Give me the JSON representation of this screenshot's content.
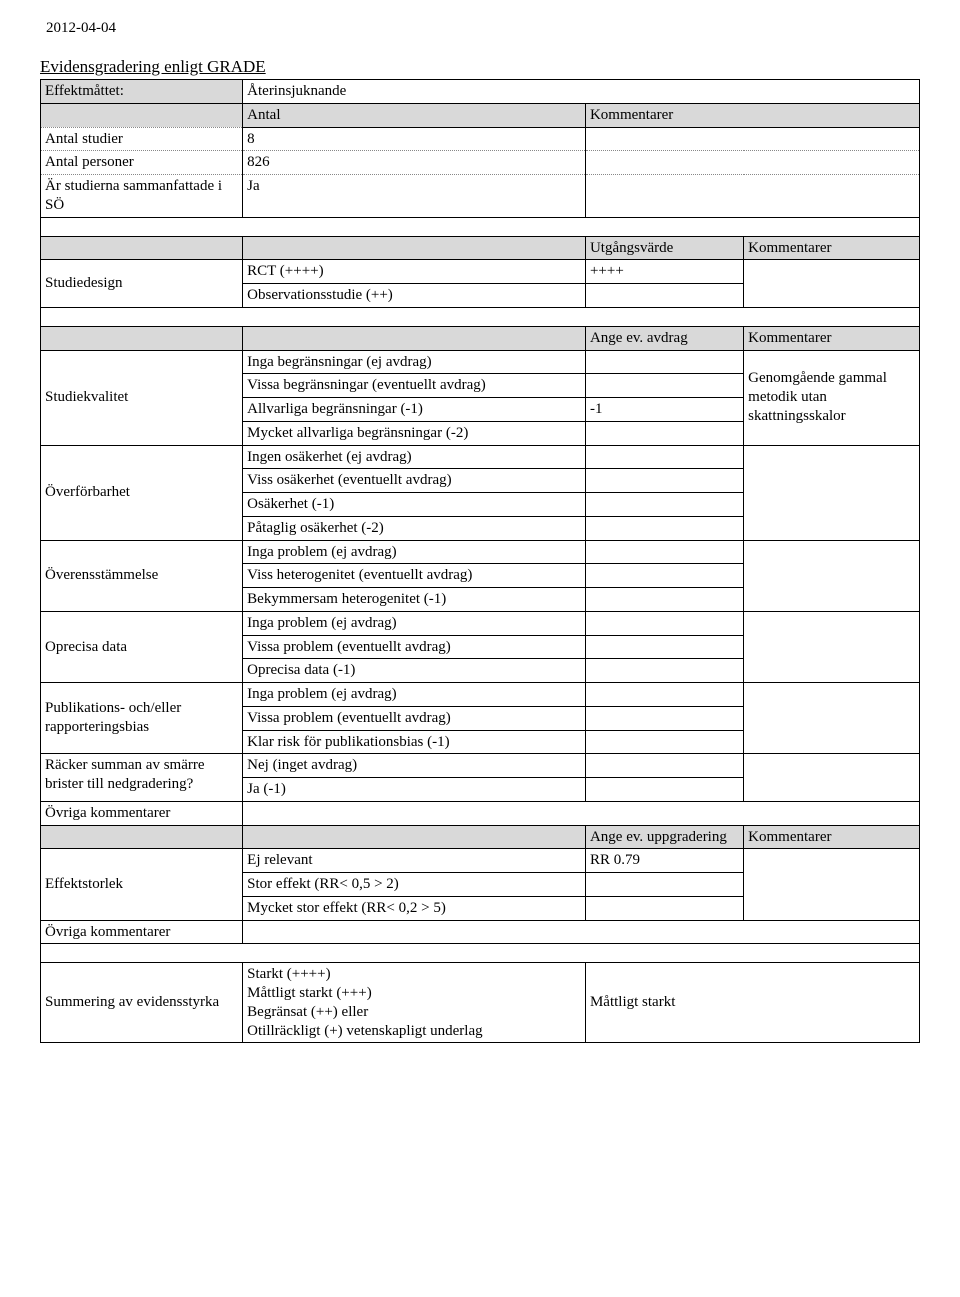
{
  "date": "2012-04-04",
  "title": "Evidensgradering enligt GRADE",
  "header_block": {
    "effektmattet_label": "Effektmåttet:",
    "effektmattet_value": "Återinsjuknande",
    "antal_header": "Antal",
    "kommentarer_header": "Kommentarer",
    "rows": [
      {
        "label": "Antal studier",
        "value": "8"
      },
      {
        "label": "Antal personer",
        "value": "826"
      },
      {
        "label": "Är studierna sammanfattade i SÖ",
        "value": "Ja"
      }
    ]
  },
  "studiedesign": {
    "label": "Studiedesign",
    "header_c3": "Utgångsvärde",
    "header_c4": "Kommentarer",
    "rows": [
      {
        "c2": "RCT (++++)",
        "c3": "++++"
      },
      {
        "c2": "Observationsstudie (++)",
        "c3": ""
      }
    ]
  },
  "avdrag": {
    "header_c3": "Ange ev. avdrag",
    "header_c4": "Kommentarer"
  },
  "studiekvalitet": {
    "label": "Studiekvalitet",
    "comment": "Genomgående gammal metodik utan skattningsskalor",
    "rows": [
      {
        "c2": "Inga begränsningar (ej avdrag)",
        "c3": ""
      },
      {
        "c2": "Vissa begränsningar (eventuellt avdrag)",
        "c3": ""
      },
      {
        "c2": "Allvarliga begränsningar (-1)",
        "c3": "-1"
      },
      {
        "c2": "Mycket allvarliga begränsningar (-2)",
        "c3": ""
      }
    ]
  },
  "overforbarhet": {
    "label": "Överförbarhet",
    "rows": [
      {
        "c2": "Ingen osäkerhet (ej avdrag)",
        "c3": ""
      },
      {
        "c2": "Viss osäkerhet (eventuellt avdrag)",
        "c3": ""
      },
      {
        "c2": "Osäkerhet (-1)",
        "c3": ""
      },
      {
        "c2": "Påtaglig osäkerhet (-2)",
        "c3": ""
      }
    ]
  },
  "overensstammelse": {
    "label": "Överensstämmelse",
    "rows": [
      {
        "c2": "Inga problem (ej avdrag)",
        "c3": ""
      },
      {
        "c2": "Viss heterogenitet (eventuellt avdrag)",
        "c3": ""
      },
      {
        "c2": "Bekymmersam heterogenitet (-1)",
        "c3": ""
      }
    ]
  },
  "oprecisa": {
    "label": "Oprecisa data",
    "rows": [
      {
        "c2": "Inga problem (ej avdrag)",
        "c3": ""
      },
      {
        "c2": "Vissa problem (eventuellt avdrag)",
        "c3": ""
      },
      {
        "c2": "Oprecisa data (-1)",
        "c3": ""
      }
    ]
  },
  "publikationsbias": {
    "label": "Publikations- och/eller rapporteringsbias",
    "rows": [
      {
        "c2": "Inga problem (ej avdrag)",
        "c3": ""
      },
      {
        "c2": "Vissa problem (eventuellt avdrag)",
        "c3": ""
      },
      {
        "c2": "Klar risk för publikationsbias (-1)",
        "c3": ""
      }
    ]
  },
  "racker": {
    "label": "Räcker summan av smärre brister till nedgradering?",
    "rows": [
      {
        "c2": "Nej (inget avdrag)",
        "c3": ""
      },
      {
        "c2": "Ja (-1)",
        "c3": ""
      }
    ]
  },
  "ovriga_kommentarer": "Övriga kommentarer",
  "uppgradering": {
    "header_c3": "Ange ev. uppgradering",
    "header_c4": "Kommentarer"
  },
  "effektstorlek": {
    "label": "Effektstorlek",
    "rows": [
      {
        "c2": "Ej relevant",
        "c3": "RR 0.79"
      },
      {
        "c2": "Stor effekt (RR< 0,5 > 2)",
        "c3": ""
      },
      {
        "c2": "Mycket stor effekt (RR< 0,2 > 5)",
        "c3": ""
      }
    ]
  },
  "summering": {
    "label": "Summering av evidensstyrka",
    "lines": [
      "Starkt (++++)",
      "Måttligt starkt (+++)",
      "Begränsat (++) eller",
      "Otillräckligt (+) vetenskapligt underlag"
    ],
    "result": "Måttligt starkt"
  }
}
